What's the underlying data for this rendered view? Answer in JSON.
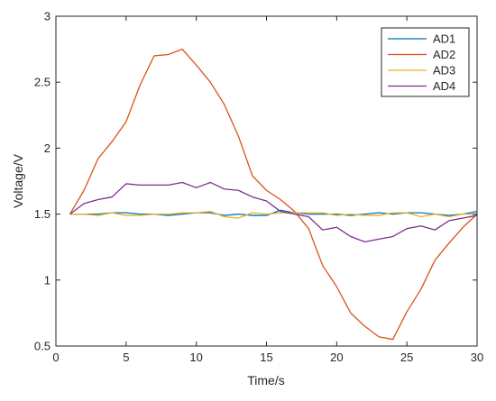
{
  "chart_data": {
    "type": "line",
    "title": "",
    "xlabel": "Time/s",
    "ylabel": "Voltage/V",
    "xlim": [
      0,
      30
    ],
    "ylim": [
      0.5,
      3
    ],
    "xticks": [
      0,
      5,
      10,
      15,
      20,
      25,
      30
    ],
    "yticks": [
      0.5,
      1,
      1.5,
      2,
      2.5,
      3
    ],
    "xtick_labels": [
      "0",
      "5",
      "10",
      "15",
      "20",
      "25",
      "30"
    ],
    "ytick_labels": [
      "0.5",
      "1",
      "1.5",
      "2",
      "2.5",
      "3"
    ],
    "grid": false,
    "legend_position": "top-right",
    "x": [
      1,
      2,
      3,
      4,
      5,
      6,
      7,
      8,
      9,
      10,
      11,
      12,
      13,
      14,
      15,
      16,
      17,
      18,
      19,
      20,
      21,
      22,
      23,
      24,
      25,
      26,
      27,
      28,
      29,
      30
    ],
    "series": [
      {
        "name": "AD1",
        "color": "#0072BD",
        "values": [
          1.5,
          1.5,
          1.5,
          1.51,
          1.51,
          1.5,
          1.5,
          1.49,
          1.5,
          1.51,
          1.51,
          1.49,
          1.5,
          1.49,
          1.49,
          1.53,
          1.51,
          1.5,
          1.5,
          1.5,
          1.49,
          1.5,
          1.51,
          1.5,
          1.51,
          1.51,
          1.5,
          1.49,
          1.5,
          1.52
        ]
      },
      {
        "name": "AD2",
        "color": "#D95319",
        "values": [
          1.5,
          1.68,
          1.92,
          2.05,
          2.2,
          2.48,
          2.7,
          2.71,
          2.75,
          2.63,
          2.5,
          2.33,
          2.09,
          1.79,
          1.68,
          1.61,
          1.52,
          1.39,
          1.11,
          0.95,
          0.75,
          0.65,
          0.57,
          0.55,
          0.76,
          0.93,
          1.15,
          1.28,
          1.4,
          1.5
        ]
      },
      {
        "name": "AD3",
        "color": "#EDB120",
        "values": [
          1.5,
          1.5,
          1.49,
          1.51,
          1.49,
          1.49,
          1.5,
          1.5,
          1.51,
          1.51,
          1.52,
          1.48,
          1.47,
          1.51,
          1.5,
          1.51,
          1.51,
          1.51,
          1.51,
          1.49,
          1.5,
          1.49,
          1.49,
          1.51,
          1.51,
          1.48,
          1.5,
          1.48,
          1.5,
          1.5
        ]
      },
      {
        "name": "AD4",
        "color": "#7E2F8E",
        "values": [
          1.5,
          1.58,
          1.61,
          1.63,
          1.73,
          1.72,
          1.72,
          1.72,
          1.74,
          1.7,
          1.74,
          1.69,
          1.68,
          1.63,
          1.6,
          1.52,
          1.5,
          1.48,
          1.38,
          1.4,
          1.33,
          1.29,
          1.31,
          1.33,
          1.39,
          1.41,
          1.38,
          1.45,
          1.47,
          1.49
        ]
      }
    ]
  },
  "colors": {
    "axis": "#262626",
    "legend_border": "#262626",
    "background": "#ffffff"
  }
}
